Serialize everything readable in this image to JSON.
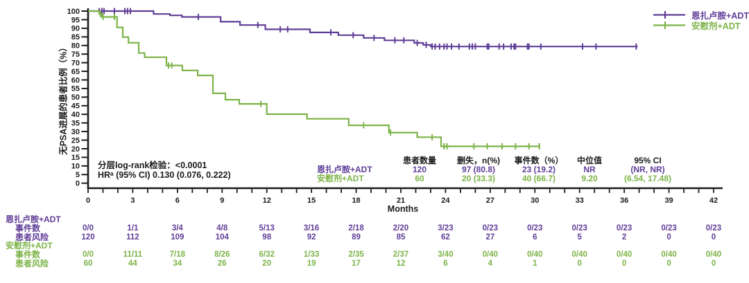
{
  "colors": {
    "enzalutamide": "#5F3D97",
    "placebo": "#7CB347",
    "axis": "#1A1A1A"
  },
  "legend": {
    "items": [
      {
        "label": "恩扎卢胺+ADT",
        "color": "#5F3D97"
      },
      {
        "label": "安慰剂+ADT",
        "color": "#7CB347"
      }
    ]
  },
  "stats": {
    "logrank": "分层log-rank检验：<0.0001",
    "hr": "HRᵃ (95% CI) 0.130 (0.076, 0.222)"
  },
  "axes": {
    "xlabel": "Months",
    "ylabel": "无PSA进展的患者比例（%）",
    "xticks_labeled": [
      0,
      3,
      6,
      9,
      12,
      15,
      18,
      21,
      24,
      27,
      30,
      33,
      36,
      39,
      42
    ],
    "xticks_minor_step": 1,
    "xmax_tick": 42,
    "yticks": [
      0,
      5,
      10,
      15,
      20,
      25,
      30,
      35,
      40,
      45,
      50,
      55,
      60,
      65,
      70,
      75,
      80,
      85,
      90,
      95,
      100
    ]
  },
  "chart_data": {
    "type": "line",
    "subtype": "kaplan-meier-step",
    "title": "",
    "xlabel": "Months",
    "ylabel": "无PSA进展的患者比例（%）",
    "xlim": [
      0,
      42
    ],
    "ylim": [
      0,
      100
    ],
    "grid": false,
    "legend_position": "top-right",
    "series": [
      {
        "name": "恩扎卢胺+ADT",
        "color": "#5F3D97",
        "steps": [
          [
            0,
            100
          ],
          [
            4.4,
            98.3
          ],
          [
            5.5,
            97.5
          ],
          [
            6.3,
            96.6
          ],
          [
            8.9,
            93.8
          ],
          [
            10.2,
            91.9
          ],
          [
            11.9,
            89.4
          ],
          [
            14.9,
            87.6
          ],
          [
            16.8,
            86.0
          ],
          [
            18.5,
            84.4
          ],
          [
            19.9,
            83.0
          ],
          [
            21.9,
            81.5
          ],
          [
            22.5,
            80.4
          ],
          [
            23.0,
            79.4
          ],
          [
            36.9,
            79.4
          ]
        ],
        "censors": [
          [
            0.75,
            100
          ],
          [
            0.93,
            100
          ],
          [
            1.07,
            100
          ],
          [
            1.77,
            100
          ],
          [
            2.47,
            100
          ],
          [
            2.65,
            100
          ],
          [
            2.84,
            100
          ],
          [
            7.4,
            96.6
          ],
          [
            11.4,
            91.9
          ],
          [
            12.9,
            89.4
          ],
          [
            13.4,
            89.4
          ],
          [
            16.3,
            87.6
          ],
          [
            17.8,
            86.0
          ],
          [
            19.2,
            84.4
          ],
          [
            20.6,
            83.0
          ],
          [
            21.2,
            83.0
          ],
          [
            22.1,
            81.5
          ],
          [
            22.7,
            80.4
          ],
          [
            23.1,
            79.4
          ],
          [
            23.3,
            79.4
          ],
          [
            23.6,
            79.4
          ],
          [
            23.9,
            79.4
          ],
          [
            24.1,
            79.4
          ],
          [
            24.4,
            79.4
          ],
          [
            24.9,
            79.4
          ],
          [
            25.6,
            79.4
          ],
          [
            25.8,
            79.4
          ],
          [
            26.0,
            79.4
          ],
          [
            26.8,
            79.4
          ],
          [
            26.9,
            79.4
          ],
          [
            27.6,
            79.4
          ],
          [
            27.9,
            79.4
          ],
          [
            28.4,
            79.4
          ],
          [
            28.6,
            79.4
          ],
          [
            28.7,
            79.4
          ],
          [
            29.5,
            79.4
          ],
          [
            29.6,
            79.4
          ],
          [
            30.4,
            79.4
          ],
          [
            33.2,
            79.4
          ],
          [
            34.1,
            79.4
          ],
          [
            36.8,
            79.4
          ]
        ]
      },
      {
        "name": "安慰剂+ADT",
        "color": "#7CB347",
        "steps": [
          [
            0,
            100
          ],
          [
            0.75,
            98.3
          ],
          [
            0.93,
            96.6
          ],
          [
            1.94,
            90.5
          ],
          [
            2.33,
            84.9
          ],
          [
            2.71,
            81.6
          ],
          [
            3.4,
            75.6
          ],
          [
            3.8,
            73.2
          ],
          [
            5.26,
            68.4
          ],
          [
            6.33,
            65.5
          ],
          [
            7.36,
            62.6
          ],
          [
            8.38,
            52.2
          ],
          [
            9.22,
            48.5
          ],
          [
            10.15,
            46.1
          ],
          [
            12.0,
            40.1
          ],
          [
            14.7,
            37.4
          ],
          [
            17.5,
            33.6
          ],
          [
            20.2,
            29.4
          ],
          [
            22.1,
            26.7
          ],
          [
            23.7,
            21.4
          ],
          [
            30.35,
            21.4
          ]
        ],
        "censors": [
          [
            0.84,
            98.3
          ],
          [
            1.0,
            96.6
          ],
          [
            1.77,
            96.6
          ],
          [
            5.4,
            68.4
          ],
          [
            5.62,
            68.4
          ],
          [
            11.6,
            46.1
          ],
          [
            18.5,
            33.6
          ],
          [
            20.3,
            29.4
          ],
          [
            23.1,
            26.7
          ],
          [
            23.9,
            21.4
          ],
          [
            24.1,
            21.4
          ],
          [
            25.9,
            21.4
          ],
          [
            26.8,
            21.4
          ],
          [
            27.8,
            21.4
          ],
          [
            28.7,
            21.4
          ],
          [
            29.6,
            21.4
          ],
          [
            30.3,
            21.4
          ]
        ]
      }
    ],
    "annotations": {
      "logrank": "分层log-rank检验：<0.0001",
      "hr": "HRᵃ (95% CI) 0.130 (0.076, 0.222)"
    }
  },
  "summary_table": {
    "headers": [
      "患者数量",
      "删失，n(%)",
      "事件数（%）",
      "中位值",
      "95% CI"
    ],
    "rows": [
      {
        "label": "恩扎卢胺+ADT",
        "color": "#5F3D97",
        "values": [
          "120",
          "97 (80.8)",
          "23 (19.2)",
          "NR",
          "(NR, NR)"
        ]
      },
      {
        "label": "安慰剂+ADT",
        "color": "#7CB347",
        "values": [
          "60",
          "20 (33.3)",
          "40 (66.7)",
          "9.20",
          "(6.54, 17.48)"
        ]
      }
    ]
  },
  "risk_table": {
    "timepoints": [
      0,
      3,
      6,
      9,
      12,
      15,
      18,
      21,
      24,
      27,
      30,
      33,
      36,
      39,
      42
    ],
    "groups": [
      {
        "label": "恩扎卢胺+ADT",
        "color": "#5F3D97",
        "rows": [
          {
            "label": "事件数",
            "values": [
              "0/0",
              "1/1",
              "3/4",
              "4/8",
              "5/13",
              "3/16",
              "2/18",
              "2/20",
              "3/23",
              "0/23",
              "0/23",
              "0/23",
              "0/23",
              "0/23",
              "0/23"
            ]
          },
          {
            "label": "患者风险",
            "values": [
              "120",
              "112",
              "109",
              "104",
              "98",
              "92",
              "89",
              "85",
              "62",
              "27",
              "6",
              "5",
              "2",
              "0",
              "0"
            ]
          }
        ]
      },
      {
        "label": "安慰剂+ADT",
        "color": "#7CB347",
        "rows": [
          {
            "label": "事件数",
            "values": [
              "0/0",
              "11/11",
              "7/18",
              "8/26",
              "6/32",
              "1/33",
              "2/35",
              "2/37",
              "3/40",
              "0/40",
              "0/40",
              "0/40",
              "0/40",
              "0/40",
              "0/40"
            ]
          },
          {
            "label": "患者风险",
            "values": [
              "60",
              "44",
              "34",
              "26",
              "20",
              "19",
              "17",
              "12",
              "6",
              "4",
              "1",
              "0",
              "0",
              "0",
              "0"
            ]
          }
        ]
      }
    ]
  }
}
